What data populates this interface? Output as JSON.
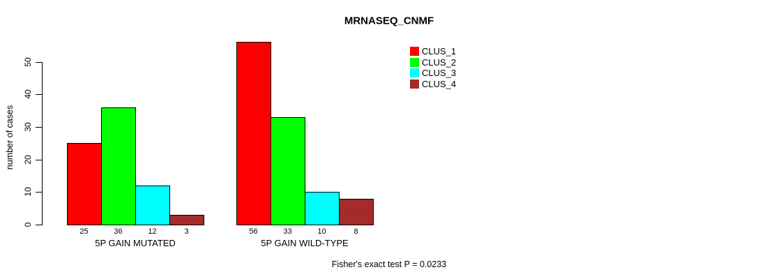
{
  "chart_data": {
    "type": "bar",
    "title": "MRNASEQ_CNMF",
    "xlabel": "",
    "ylabel": "number of cases",
    "ylim": [
      0,
      50
    ],
    "yticks": [
      0,
      10,
      20,
      30,
      40,
      50
    ],
    "grid": false,
    "legend_position": "top-right",
    "categories": [
      "5P GAIN MUTATED",
      "5P GAIN WILD-TYPE"
    ],
    "series": [
      {
        "name": "CLUS_1",
        "color": "#ff0000",
        "values": [
          25,
          56
        ]
      },
      {
        "name": "CLUS_2",
        "color": "#00ff00",
        "values": [
          36,
          33
        ]
      },
      {
        "name": "CLUS_3",
        "color": "#00ffff",
        "values": [
          12,
          10
        ]
      },
      {
        "name": "CLUS_4",
        "color": "#a52a2a",
        "values": [
          3,
          8
        ]
      }
    ],
    "bar_value_labels": [
      [
        25,
        36,
        12,
        3
      ],
      [
        56,
        33,
        10,
        8
      ]
    ],
    "annotation": "Fisher's exact test P = 0.0233"
  },
  "colors": {
    "axis": "#000000",
    "background": "#ffffff"
  }
}
